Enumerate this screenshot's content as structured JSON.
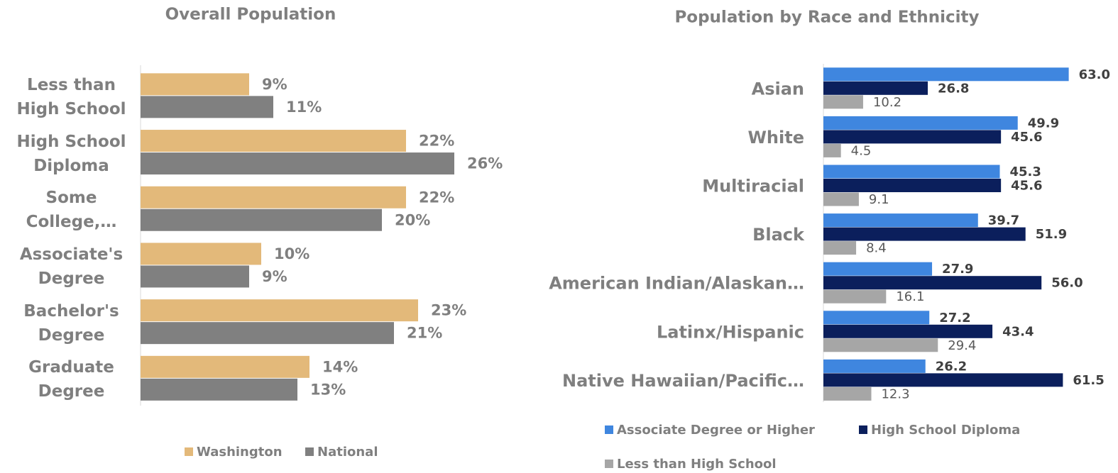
{
  "chart_data": [
    {
      "type": "hbar",
      "title": "Overall Population",
      "categories": [
        "Less than High School",
        "High School Diploma",
        "Some College,…",
        "Associate's Degree",
        "Bachelor's Degree",
        "Graduate Degree"
      ],
      "series": [
        {
          "name": "Washington",
          "color": "#e3b97a",
          "values": [
            9,
            22,
            22,
            10,
            23,
            14
          ],
          "value_labels": [
            "9%",
            "22%",
            "22%",
            "10%",
            "23%",
            "14%"
          ]
        },
        {
          "name": "National",
          "color": "#808080",
          "values": [
            11,
            26,
            20,
            9,
            21,
            13
          ],
          "value_labels": [
            "11%",
            "26%",
            "20%",
            "9%",
            "21%",
            "13%"
          ]
        }
      ],
      "xlim": [
        0,
        30
      ]
    },
    {
      "type": "hbar",
      "title": "Population by Race and Ethnicity",
      "categories": [
        "Asian",
        "White",
        "Multiracial",
        "Black",
        "American Indian/Alaskan…",
        "Latinx/Hispanic",
        "Native Hawaiian/Pacific…"
      ],
      "series": [
        {
          "name": "Associate Degree or Higher",
          "color": "#3f86df",
          "values": [
            63.0,
            49.9,
            45.3,
            39.7,
            27.9,
            27.2,
            26.2
          ],
          "value_labels": [
            "63.0",
            "49.9",
            "45.3",
            "39.7",
            "27.9",
            "27.2",
            "26.2"
          ]
        },
        {
          "name": "High School Diploma",
          "color": "#0b1f5c",
          "values": [
            26.8,
            45.6,
            45.6,
            51.9,
            56.0,
            43.4,
            61.5
          ],
          "value_labels": [
            "26.8",
            "45.6",
            "45.6",
            "51.9",
            "56.0",
            "43.4",
            "61.5"
          ]
        },
        {
          "name": "Less than High School",
          "color": "#a6a6a6",
          "values": [
            10.2,
            4.5,
            9.1,
            8.4,
            16.1,
            29.4,
            12.3
          ],
          "value_labels": [
            "10.2",
            "4.5",
            "9.1",
            "8.4",
            "16.1",
            "29.4",
            "12.3"
          ]
        }
      ],
      "xlim": [
        0,
        70
      ]
    }
  ]
}
